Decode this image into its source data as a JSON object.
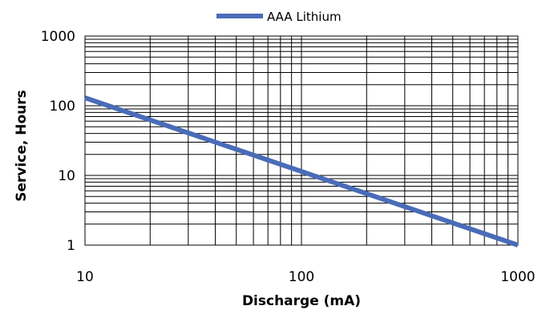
{
  "chart_data": {
    "type": "line",
    "title": "",
    "xlabel": "Discharge (mA)",
    "ylabel": "Service, Hours",
    "x_scale": "log",
    "y_scale": "log",
    "xlim": [
      10,
      1000
    ],
    "ylim": [
      1,
      1000
    ],
    "x_ticks": [
      "10",
      "100",
      "1000"
    ],
    "y_ticks": [
      "1",
      "10",
      "100",
      "1000"
    ],
    "grid": true,
    "legend": "top-center",
    "series": [
      {
        "name": "AAA Lithium",
        "color": "#4a6cb8",
        "x": [
          10,
          1000
        ],
        "y": [
          130,
          1
        ]
      }
    ]
  }
}
